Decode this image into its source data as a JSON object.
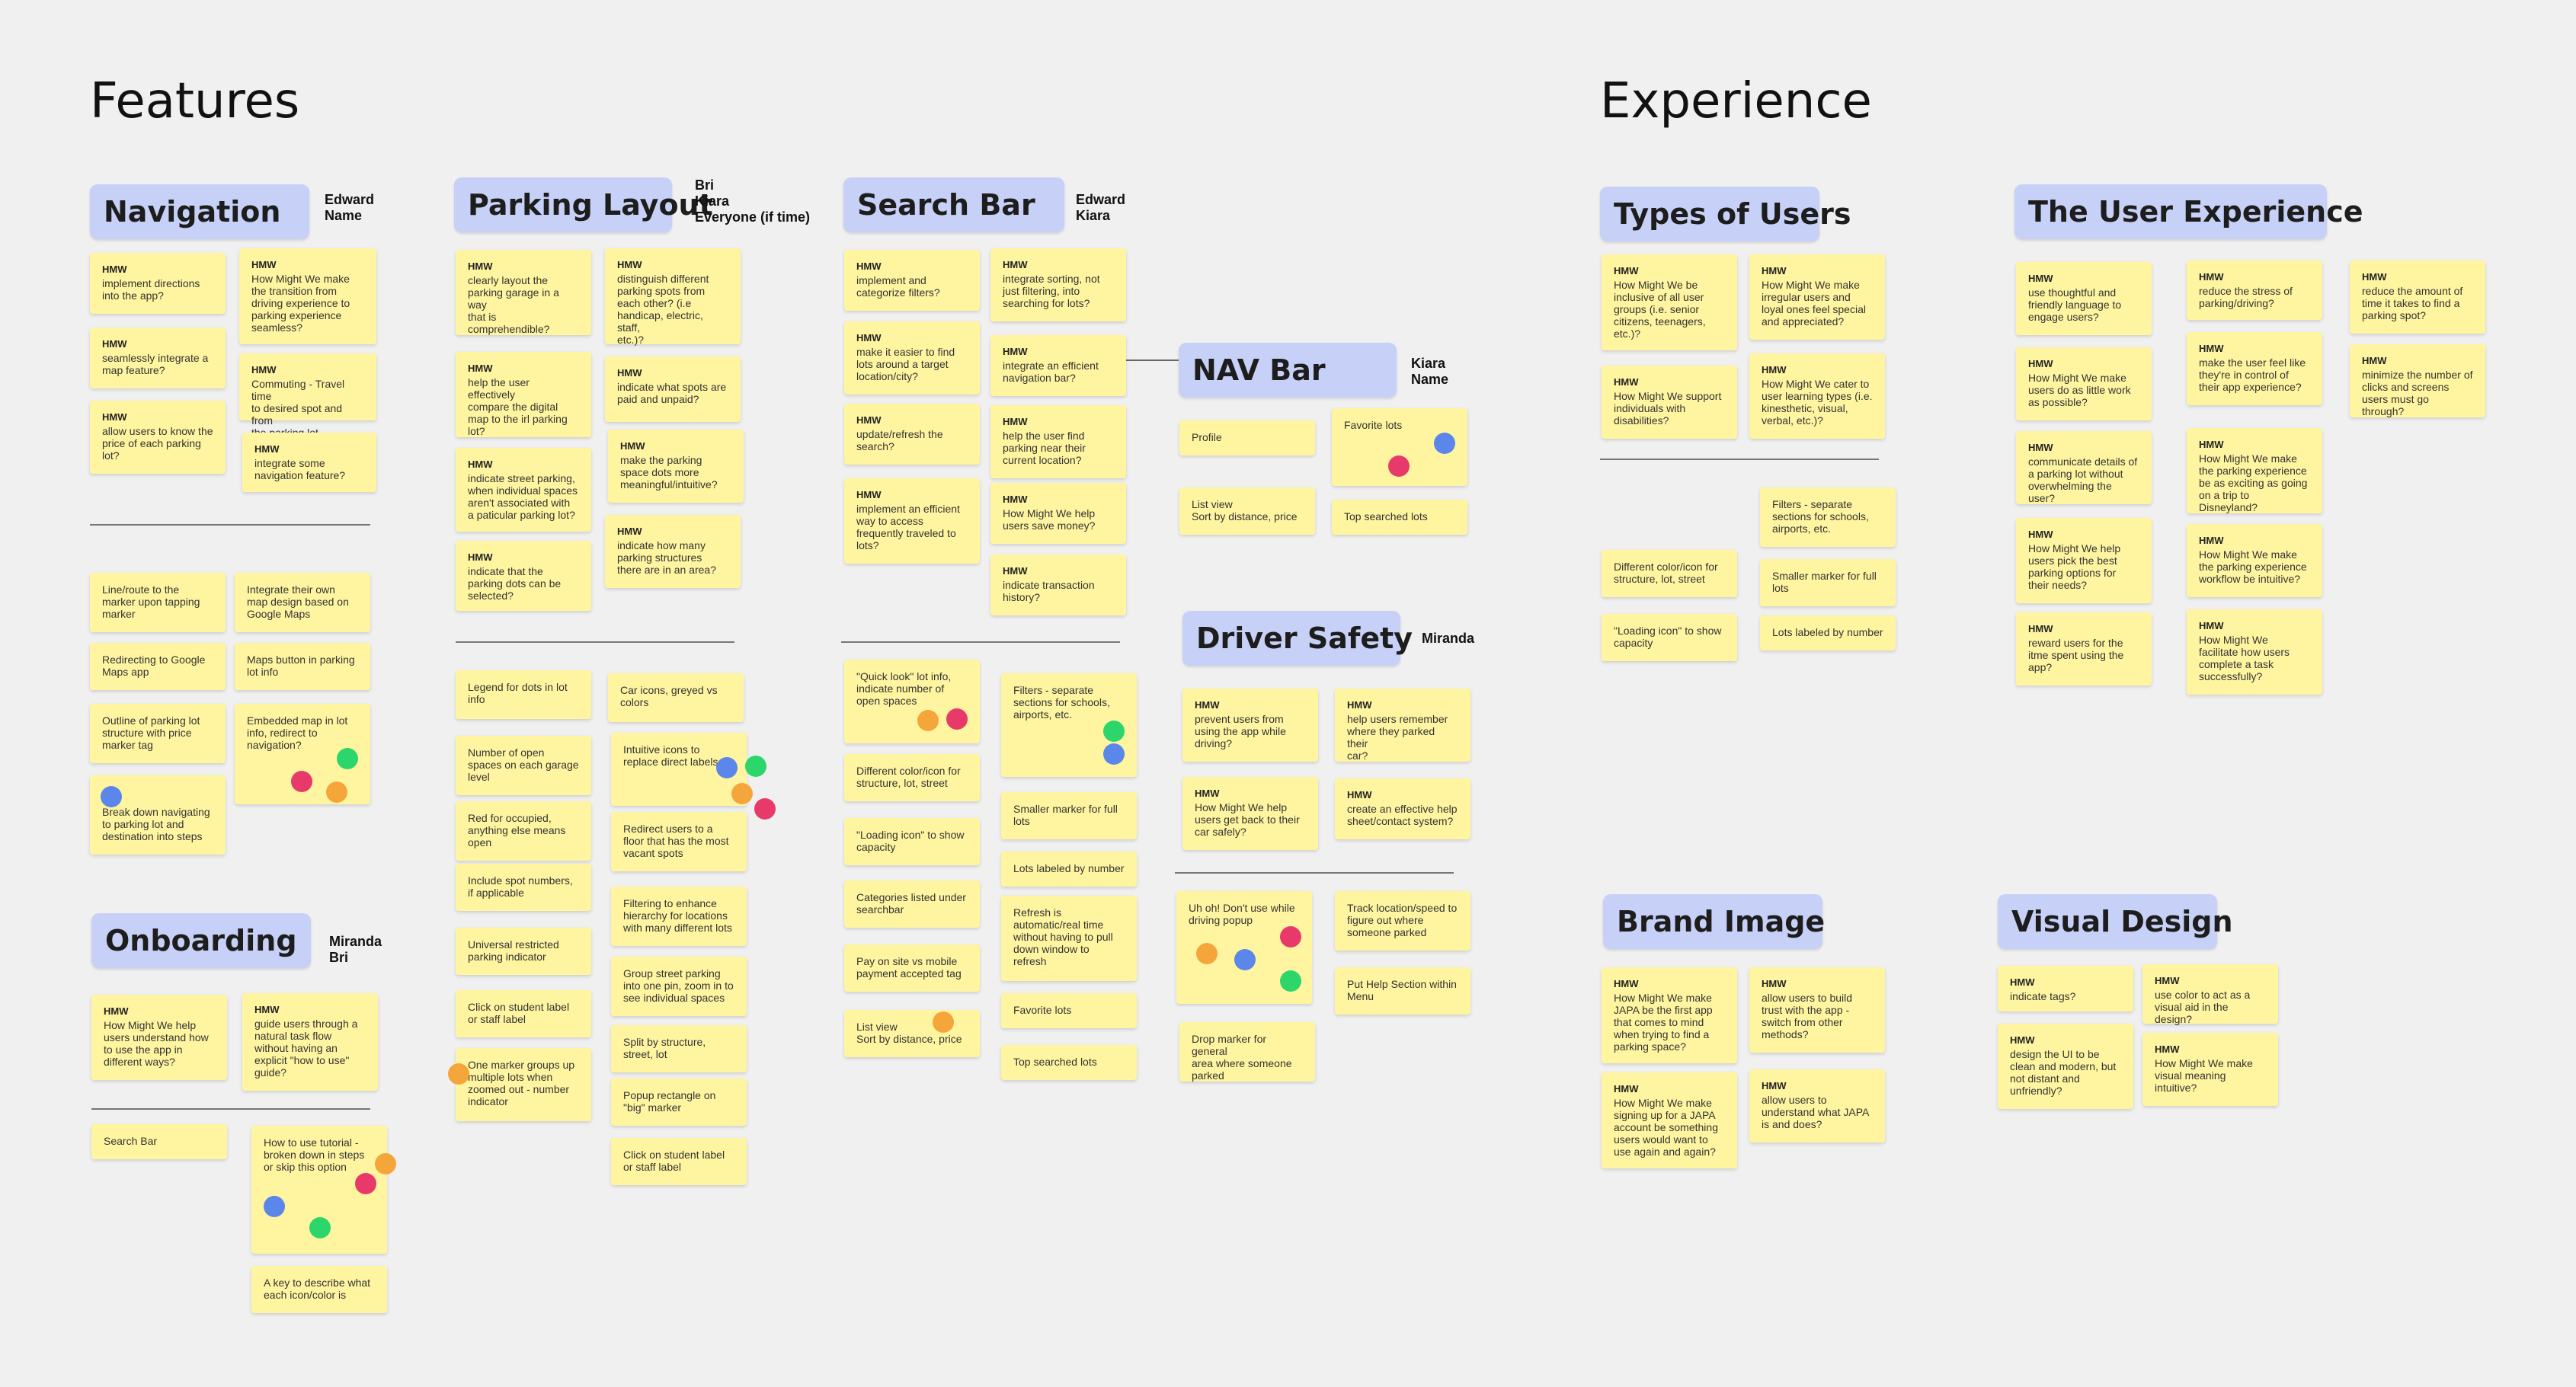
{
  "headings": {
    "features": "Features",
    "experience": "Experience"
  },
  "colors": {
    "note": "#fff5a0",
    "category": "#c7d1f7",
    "dot_orange": "#f5a63a",
    "dot_pink": "#e73a6a",
    "dot_green": "#2dd66b",
    "dot_blue": "#5b86ea"
  },
  "categories": [
    {
      "label": "Navigation"
    },
    {
      "label": "Parking Layout"
    },
    {
      "label": "Search Bar"
    },
    {
      "label": "NAV Bar"
    },
    {
      "label": "Driver Safety"
    },
    {
      "label": "Onboarding"
    },
    {
      "label": "Types of Users"
    },
    {
      "label": "The User Experience"
    },
    {
      "label": "Brand Image"
    },
    {
      "label": "Visual Design"
    }
  ],
  "names": [
    "Edward\nName",
    "Bri\nKiara\nEveryone (if time)",
    "Edward\nKiara",
    "Kiara\nName",
    "Miranda",
    "Miranda\nBri"
  ],
  "notes": [
    {
      "hmw": "HMW",
      "text": "implement directions\ninto the app?"
    },
    {
      "hmw": "HMW",
      "text": "How Might We make\nthe transition from\ndriving experience to\nparking experience\nseamless?"
    },
    {
      "hmw": "HMW",
      "text": "seamlessly integrate a\nmap feature?"
    },
    {
      "hmw": "HMW",
      "text": "Commuting - Travel time\nto desired spot and from\nthe parking lot"
    },
    {
      "hmw": "HMW",
      "text": "allow users to know the\nprice of each parking\nlot?"
    },
    {
      "hmw": "HMW",
      "text": "integrate some\nnavigation feature?"
    },
    {
      "hmw": "",
      "text": "Line/route to the\nmarker upon tapping\nmarker"
    },
    {
      "hmw": "",
      "text": "Integrate their own\nmap design based on\nGoogle Maps"
    },
    {
      "hmw": "",
      "text": "Redirecting to Google\nMaps app"
    },
    {
      "hmw": "",
      "text": "Maps button in parking\nlot info"
    },
    {
      "hmw": "",
      "text": "Outline of parking lot\nstructure with price\nmarker tag"
    },
    {
      "hmw": "",
      "text": "Embedded map in lot\ninfo, redirect to\nnavigation?"
    },
    {
      "hmw": "",
      "text": "Break down navigating\nto parking lot and\ndestination into steps"
    },
    {
      "hmw": "HMW",
      "text": "clearly layout the\nparking garage in a way\nthat is\ncomprehendible?"
    },
    {
      "hmw": "HMW",
      "text": "distinguish different\nparking spots from\neach other? (i.e\nhandicap, electric, staff,\netc.)?"
    },
    {
      "hmw": "HMW",
      "text": "help the user effectively\ncompare the digital\nmap to the irl parking\nlot?"
    },
    {
      "hmw": "HMW",
      "text": "indicate what spots are\npaid and unpaid?"
    },
    {
      "hmw": "HMW",
      "text": "indicate street parking,\nwhen individual spaces\naren't associated with\na paticular parking lot?"
    },
    {
      "hmw": "HMW",
      "text": "make the parking\nspace dots more\nmeaningful/intuitive?"
    },
    {
      "hmw": "HMW",
      "text": "indicate that the\nparking dots can be\nselected?"
    },
    {
      "hmw": "HMW",
      "text": "indicate how many\nparking structures\nthere are in an area?"
    },
    {
      "hmw": "",
      "text": "Legend for dots in lot\ninfo"
    },
    {
      "hmw": "",
      "text": "Car icons, greyed vs\ncolors"
    },
    {
      "hmw": "",
      "text": "Number of open\nspaces on each garage\nlevel"
    },
    {
      "hmw": "",
      "text": "Intuitive icons to\nreplace direct labels"
    },
    {
      "hmw": "",
      "text": "Red for occupied,\nanything else means\nopen"
    },
    {
      "hmw": "",
      "text": "Redirect users to a\nfloor that has the most\nvacant spots"
    },
    {
      "hmw": "",
      "text": "Include spot numbers,\nif applicable"
    },
    {
      "hmw": "",
      "text": "Filtering to enhance\nhierarchy for locations\nwith many different lots"
    },
    {
      "hmw": "",
      "text": "Universal restricted\nparking indicator"
    },
    {
      "hmw": "",
      "text": "Group street parking\ninto one pin, zoom in to\nsee individual spaces"
    },
    {
      "hmw": "",
      "text": "Click on student label\nor staff label"
    },
    {
      "hmw": "",
      "text": "Split by structure,\nstreet, lot"
    },
    {
      "hmw": "",
      "text": "One marker groups up\nmultiple lots when\nzoomed out - number\nindicator"
    },
    {
      "hmw": "",
      "text": "Popup rectangle on\n\"big\" marker"
    },
    {
      "hmw": "",
      "text": "Click on student label\nor staff label"
    },
    {
      "hmw": "HMW",
      "text": "implement and\ncategorize filters?"
    },
    {
      "hmw": "HMW",
      "text": "integrate sorting, not\njust filtering, into\nsearching for lots?"
    },
    {
      "hmw": "HMW",
      "text": "make it easier to find\nlots around a target\nlocation/city?"
    },
    {
      "hmw": "HMW",
      "text": "integrate an efficient\nnavigation bar?"
    },
    {
      "hmw": "HMW",
      "text": "update/refresh the\nsearch?"
    },
    {
      "hmw": "HMW",
      "text": "help the user find\nparking near their\ncurrent location?"
    },
    {
      "hmw": "HMW",
      "text": "implement an efficient\nway to access\nfrequently traveled to\nlots?"
    },
    {
      "hmw": "HMW",
      "text": "How Might We help\nusers save money?"
    },
    {
      "hmw": "HMW",
      "text": "indicate transaction\nhistory?"
    },
    {
      "hmw": "",
      "text": "\"Quick look\" lot info,\nindicate number of\nopen spaces"
    },
    {
      "hmw": "",
      "text": "Filters - separate\nsections for schools,\nairports, etc."
    },
    {
      "hmw": "",
      "text": "Different color/icon for\nstructure, lot, street"
    },
    {
      "hmw": "",
      "text": "Smaller marker for full\nlots"
    },
    {
      "hmw": "",
      "text": "\"Loading icon\" to show\ncapacity"
    },
    {
      "hmw": "",
      "text": "Lots labeled by number"
    },
    {
      "hmw": "",
      "text": "Categories listed under\nsearchbar"
    },
    {
      "hmw": "",
      "text": "Refresh is\nautomatic/real time\nwithout having to pull\ndown window to\nrefresh"
    },
    {
      "hmw": "",
      "text": "Pay on site vs mobile\npayment accepted tag"
    },
    {
      "hmw": "",
      "text": "Favorite lots"
    },
    {
      "hmw": "",
      "text": "List view\nSort by distance, price"
    },
    {
      "hmw": "",
      "text": "Top searched lots"
    },
    {
      "hmw": "",
      "text": "Profile"
    },
    {
      "hmw": "",
      "text": "Favorite lots"
    },
    {
      "hmw": "",
      "text": "List view\nSort by distance, price"
    },
    {
      "hmw": "",
      "text": "Top searched lots"
    },
    {
      "hmw": "HMW",
      "text": "prevent users from\nusing the app while\ndriving?"
    },
    {
      "hmw": "HMW",
      "text": "help users remember\nwhere they parked their\ncar?"
    },
    {
      "hmw": "HMW",
      "text": "How Might We help\nusers get back to their\ncar safely?"
    },
    {
      "hmw": "HMW",
      "text": "create an effective help\nsheet/contact system?"
    },
    {
      "hmw": "",
      "text": "Uh oh! Don't use while\ndriving popup"
    },
    {
      "hmw": "",
      "text": "Track location/speed to\nfigure out where\nsomeone parked"
    },
    {
      "hmw": "",
      "text": "Put Help Section within\nMenu"
    },
    {
      "hmw": "",
      "text": "Drop marker for general\narea where someone\nparked"
    },
    {
      "hmw": "HMW",
      "text": "How Might We help\nusers understand how\nto use the app in\ndifferent ways?"
    },
    {
      "hmw": "HMW",
      "text": "guide users through a\nnatural task flow\nwithout having an\nexplicit \"how to use\"\nguide?"
    },
    {
      "hmw": "",
      "text": "Search Bar"
    },
    {
      "hmw": "",
      "text": "How to use tutorial -\nbroken down in steps\nor skip this option"
    },
    {
      "hmw": "",
      "text": "A key to describe what\neach icon/color is"
    },
    {
      "hmw": "HMW",
      "text": "How Might We be\ninclusive of all user\ngroups (i.e. senior\ncitizens, teenagers,\netc.)?"
    },
    {
      "hmw": "HMW",
      "text": "How Might We make\nirregular users and\nloyal ones feel special\nand appreciated?"
    },
    {
      "hmw": "HMW",
      "text": "How Might We support\nindividuals with\ndisabilities?"
    },
    {
      "hmw": "HMW",
      "text": "How Might We cater to\nuser learning types (i.e.\nkinesthetic, visual,\nverbal, etc.)?"
    },
    {
      "hmw": "",
      "text": "Filters - separate\nsections for schools,\nairports, etc."
    },
    {
      "hmw": "",
      "text": "Different color/icon for\nstructure, lot, street"
    },
    {
      "hmw": "",
      "text": "Smaller marker for full\nlots"
    },
    {
      "hmw": "",
      "text": "\"Loading icon\" to show\ncapacity"
    },
    {
      "hmw": "",
      "text": "Lots labeled by number"
    },
    {
      "hmw": "HMW",
      "text": "use thoughtful and\nfriendly language to\nengage users?"
    },
    {
      "hmw": "HMW",
      "text": "reduce the stress of\nparking/driving?"
    },
    {
      "hmw": "HMW",
      "text": "reduce the amount of\ntime it takes to find a\nparking spot?"
    },
    {
      "hmw": "HMW",
      "text": "How Might We make\nusers do as little work\nas possible?"
    },
    {
      "hmw": "HMW",
      "text": "make the user feel like\nthey're in control of\ntheir app experience?"
    },
    {
      "hmw": "HMW",
      "text": "minimize the number of\nclicks and screens\nusers must go through?"
    },
    {
      "hmw": "HMW",
      "text": "communicate details of\na parking lot without\noverwhelming the user?"
    },
    {
      "hmw": "HMW",
      "text": "How Might We make\nthe parking experience\nbe as exciting as going\non a trip to Disneyland?"
    },
    {
      "hmw": "HMW",
      "text": "How Might We help\nusers pick the best\nparking options for\ntheir needs?"
    },
    {
      "hmw": "HMW",
      "text": "How Might We make\nthe parking experience\nworkflow be intuitive?"
    },
    {
      "hmw": "HMW",
      "text": "reward users for the\nitme spent using the\napp?"
    },
    {
      "hmw": "HMW",
      "text": "How Might We\nfacilitate how users\ncomplete a task\nsuccessfully?"
    },
    {
      "hmw": "HMW",
      "text": "How Might We make\nJAPA be the first app\nthat comes to mind\nwhen trying to find a\nparking space?"
    },
    {
      "hmw": "HMW",
      "text": "allow users to build\ntrust with the app -\nswitch from other\nmethods?"
    },
    {
      "hmw": "HMW",
      "text": "How Might We make\nsigning up for a JAPA\naccount be something\nusers would want to\nuse again and again?"
    },
    {
      "hmw": "HMW",
      "text": "allow users to\nunderstand what JAPA\nis and does?"
    },
    {
      "hmw": "HMW",
      "text": "indicate tags?"
    },
    {
      "hmw": "HMW",
      "text": "use color to act as a\nvisual aid in the design?"
    },
    {
      "hmw": "HMW",
      "text": "design the UI to be\nclean and modern, but\nnot distant and\nunfriendly?"
    },
    {
      "hmw": "HMW",
      "text": "How Might We make\nvisual meaning\nintuitive?"
    }
  ]
}
